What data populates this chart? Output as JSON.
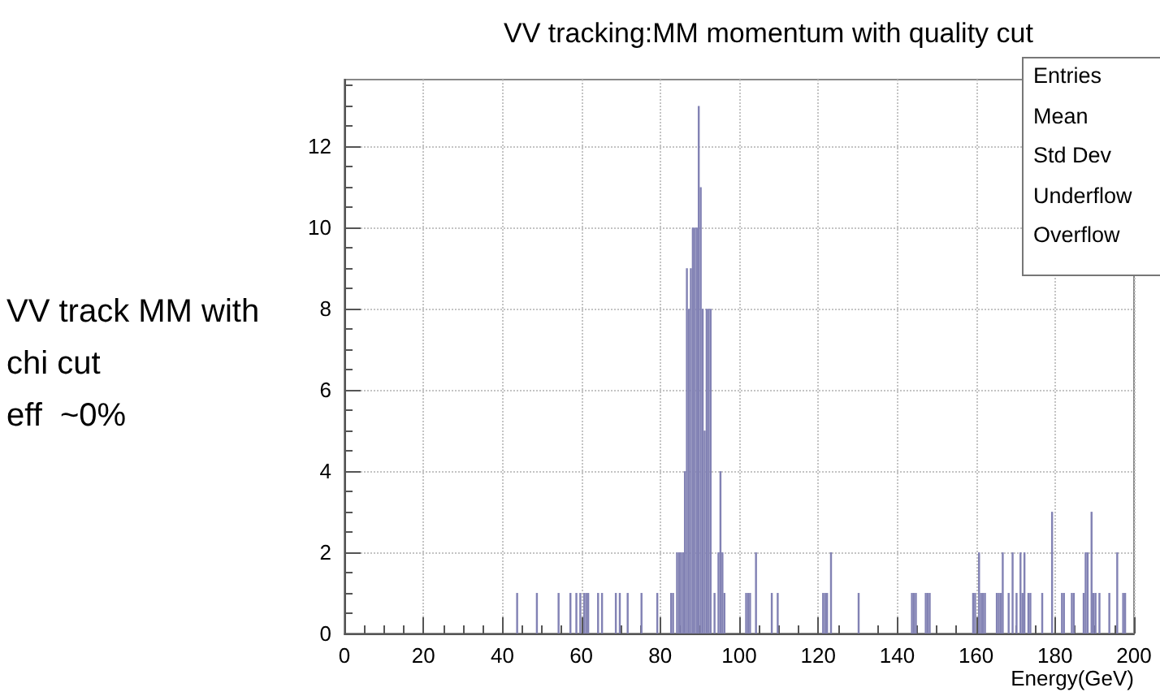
{
  "chart_data": {
    "type": "histogram",
    "title": "VV tracking:MM momentum with quality cut",
    "xlabel": "Energy(GeV)",
    "annotations": [
      "VV track MM with\nchi cut\neff  ~0%",
      "Entries",
      "Mean",
      "Std Dev",
      "Underflow",
      "Overflow"
    ],
    "color": "#8282b4",
    "xlim": [
      0,
      200
    ],
    "xticks": [
      0,
      20,
      40,
      60,
      80,
      100,
      120,
      140,
      160,
      180,
      200
    ],
    "ylim": [
      0,
      13.65
    ],
    "yticks": [
      0,
      2,
      4,
      6,
      8,
      10,
      12
    ],
    "grid": true,
    "bins": [
      0,
      0.5,
      1,
      1.5,
      2,
      2.5,
      3,
      3.5,
      4,
      4.5,
      5,
      5.5,
      6,
      6.5,
      7,
      7.5,
      8,
      8.5,
      9,
      9.5,
      10,
      10.5,
      11,
      11.5,
      12,
      12.5,
      13,
      13.5,
      14,
      14.5,
      15,
      15.5,
      16,
      16.5,
      17,
      17.5,
      18,
      18.5,
      19,
      19.5,
      20,
      20.5,
      21,
      21.5,
      22,
      22.5,
      23,
      23.5,
      24,
      24.5,
      25,
      25.5,
      26,
      26.5,
      27,
      27.5,
      28,
      28.5,
      29,
      29.5,
      30,
      30.5,
      31,
      31.5,
      32,
      32.5,
      33,
      33.5,
      34,
      34.5,
      35,
      35.5,
      36,
      36.5,
      37,
      37.5,
      38,
      38.5,
      39,
      39.5,
      40,
      40.5,
      41,
      41.5,
      42,
      42.5,
      43,
      43.5,
      44,
      44.5,
      45,
      45.5,
      46,
      46.5,
      47,
      47.5,
      48,
      48.5,
      49,
      49.5,
      50,
      50.5,
      51,
      51.5,
      52,
      52.5,
      53,
      53.5,
      54,
      54.5,
      55,
      55.5,
      56,
      56.5,
      57,
      57.5,
      58,
      58.5,
      59,
      59.5,
      60,
      60.5,
      61,
      61.5,
      62,
      62.5,
      63,
      63.5,
      64,
      64.5,
      65,
      65.5,
      66,
      66.5,
      67,
      67.5,
      68,
      68.5,
      69,
      69.5,
      70,
      70.5,
      71,
      71.5,
      72,
      72.5,
      73,
      73.5,
      74,
      74.5,
      75,
      75.5,
      76,
      76.5,
      77,
      77.5,
      78,
      78.5,
      79,
      79.5,
      80,
      80.5,
      81,
      81.5,
      82,
      82.5,
      83,
      83.5,
      84,
      84.5,
      85,
      85.5,
      86,
      86.5,
      87,
      87.5,
      88,
      88.5,
      89,
      89.5,
      90,
      90.5,
      91,
      91.5,
      92,
      92.5,
      93,
      93.5,
      94,
      94.5,
      95,
      95.5,
      96,
      96.5,
      97,
      97.5,
      98,
      98.5,
      99,
      99.5,
      100,
      100.5,
      101,
      101.5,
      102,
      102.5,
      103,
      103.5,
      104,
      104.5,
      105,
      105.5,
      106,
      106.5,
      107,
      107.5,
      108,
      108.5,
      109,
      109.5,
      110,
      110.5,
      111,
      111.5,
      112,
      112.5,
      113,
      113.5,
      114,
      114.5,
      115,
      115.5,
      116,
      116.5,
      117,
      117.5,
      118,
      118.5,
      119,
      119.5,
      120,
      120.5,
      121,
      121.5,
      122,
      122.5,
      123,
      123.5,
      124,
      124.5,
      125,
      125.5,
      126,
      126.5,
      127,
      127.5,
      128,
      128.5,
      129,
      129.5,
      130,
      130.5,
      131,
      131.5,
      132,
      132.5,
      133,
      133.5,
      134,
      134.5,
      135,
      135.5,
      136,
      136.5,
      137,
      137.5,
      138,
      138.5,
      139,
      139.5,
      140,
      140.5,
      141,
      141.5,
      142,
      142.5,
      143,
      143.5,
      144,
      144.5,
      145,
      145.5,
      146,
      146.5,
      147,
      147.5,
      148,
      148.5,
      149,
      149.5,
      150,
      150.5,
      151,
      151.5,
      152,
      152.5,
      153,
      153.5,
      154,
      154.5,
      155,
      155.5,
      156,
      156.5,
      157,
      157.5,
      158,
      158.5,
      159,
      159.5,
      160,
      160.5,
      161,
      161.5,
      162,
      162.5,
      163,
      163.5,
      164,
      164.5,
      165,
      165.5,
      166,
      166.5,
      167,
      167.5,
      168,
      168.5,
      169,
      169.5,
      170,
      170.5,
      171,
      171.5,
      172,
      172.5,
      173,
      173.5,
      174,
      174.5,
      175,
      175.5,
      176,
      176.5,
      177,
      177.5,
      178,
      178.5,
      179,
      179.5,
      180,
      180.5,
      181,
      181.5,
      182,
      182.5,
      183,
      183.5,
      184,
      184.5,
      185,
      185.5,
      186,
      186.5,
      187,
      187.5,
      188,
      188.5,
      189,
      189.5,
      190,
      190.5,
      191,
      191.5,
      192,
      192.5,
      193,
      193.5,
      194,
      194.5,
      195,
      195.5,
      196,
      196.5,
      197,
      197.5,
      198,
      198.5,
      199,
      199.5,
      200
    ],
    "values": [
      0,
      0,
      0,
      0,
      0,
      0,
      0,
      0,
      0,
      0,
      0,
      0,
      0,
      0,
      0,
      0,
      0,
      0,
      0,
      0,
      0,
      0,
      0,
      0,
      0,
      0,
      0,
      0,
      0,
      0,
      0,
      0,
      0,
      0,
      0,
      0,
      0,
      0,
      0,
      0,
      0,
      0,
      0,
      0,
      0,
      0,
      0,
      0,
      0,
      0,
      0,
      0,
      0,
      0,
      0,
      0,
      0,
      0,
      0,
      0,
      0,
      0,
      0,
      0,
      0,
      0,
      0,
      0,
      0,
      0,
      0,
      0,
      0,
      0,
      0,
      0,
      0,
      0,
      0,
      0,
      0,
      0,
      0,
      0,
      0,
      0,
      0,
      1,
      0,
      0,
      0,
      0,
      0,
      0,
      0,
      0,
      0,
      1,
      0,
      0,
      0,
      0,
      0,
      0,
      0,
      0,
      0,
      0,
      1,
      0,
      0,
      0,
      0,
      0,
      1,
      0,
      0,
      1,
      0,
      1,
      0,
      1,
      1,
      1,
      0,
      0,
      0,
      0,
      1,
      0,
      1,
      0,
      0,
      0,
      0,
      0,
      0,
      1,
      0,
      1,
      0,
      0,
      0,
      1,
      0,
      0,
      0,
      0,
      0,
      0,
      1,
      0,
      0,
      0,
      0,
      0,
      0,
      0,
      1,
      0,
      0,
      0,
      0,
      0,
      0,
      1,
      1,
      0,
      2,
      2,
      2,
      2,
      4,
      9,
      8,
      9,
      10,
      10,
      10,
      13,
      11,
      8,
      5,
      8,
      8,
      8,
      0,
      1,
      0,
      2,
      4,
      2,
      1,
      0,
      0,
      0,
      0,
      0,
      0,
      0,
      0,
      0,
      0,
      1,
      1,
      1,
      0,
      0,
      2,
      0,
      0,
      0,
      0,
      0,
      0,
      0,
      1,
      0,
      0,
      1,
      0,
      0,
      0,
      0,
      0,
      0,
      0,
      0,
      0,
      0,
      0,
      0,
      0,
      0,
      0,
      0,
      0,
      0,
      0,
      0,
      0,
      0,
      1,
      1,
      1,
      0,
      2,
      0,
      0,
      0,
      0,
      0,
      0,
      0,
      0,
      0,
      0,
      0,
      0,
      0,
      1,
      0,
      0,
      0,
      0,
      0,
      0,
      0,
      0,
      0,
      0,
      0,
      0,
      0,
      0,
      0,
      0,
      0,
      0,
      0,
      0,
      0,
      0,
      0,
      0,
      0,
      0,
      1,
      1,
      1,
      0,
      0,
      0,
      0,
      1,
      1,
      1,
      0,
      0,
      0,
      0,
      0,
      0,
      0,
      0,
      0,
      0,
      0,
      0,
      0,
      0,
      0,
      0,
      0,
      0,
      0,
      0,
      0,
      1,
      1,
      0,
      2,
      1,
      1,
      1,
      0,
      0,
      0,
      0,
      0,
      1,
      1,
      1,
      2,
      0,
      0,
      1,
      0,
      2,
      0,
      1,
      0,
      2,
      1,
      2,
      0,
      1,
      1,
      0,
      0,
      0,
      0,
      0,
      1,
      0,
      0,
      0,
      0,
      3,
      0,
      0,
      0,
      0,
      1,
      1,
      0,
      0,
      0,
      1,
      1,
      0,
      0,
      0,
      0,
      1,
      2,
      2,
      0,
      3,
      1,
      1,
      0,
      1,
      0,
      0,
      0,
      0,
      1,
      0,
      0,
      0,
      2,
      0,
      0,
      1,
      1,
      0,
      0,
      0,
      0
    ]
  }
}
